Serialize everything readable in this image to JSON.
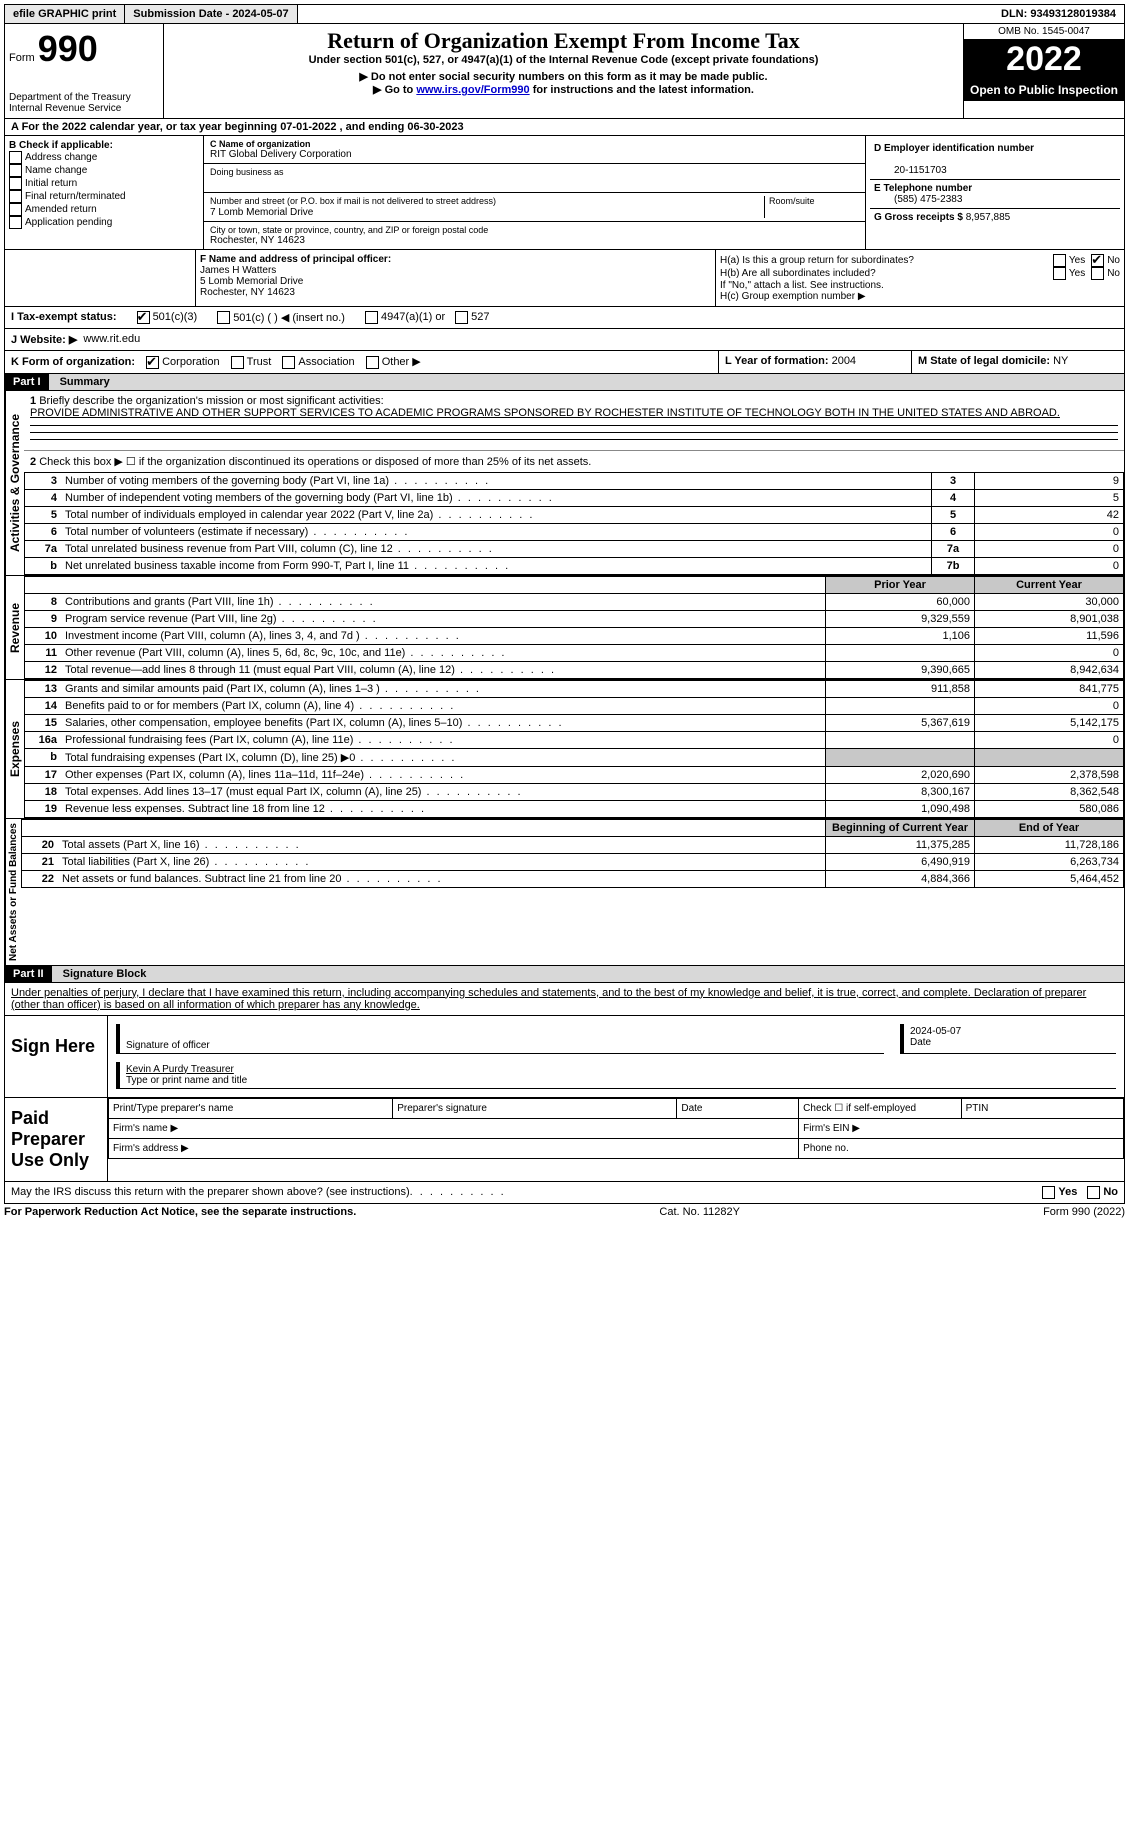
{
  "topbar": {
    "efile": "efile GRAPHIC print",
    "submission": "Submission Date - 2024-05-07",
    "dln": "DLN: 93493128019384"
  },
  "header": {
    "form_label": "Form",
    "form_number": "990",
    "dept": "Department of the Treasury",
    "irs": "Internal Revenue Service",
    "title": "Return of Organization Exempt From Income Tax",
    "subtitle": "Under section 501(c), 527, or 4947(a)(1) of the Internal Revenue Code (except private foundations)",
    "note1": "▶ Do not enter social security numbers on this form as it may be made public.",
    "note2_pre": "▶ Go to ",
    "note2_link": "www.irs.gov/Form990",
    "note2_post": " for instructions and the latest information.",
    "omb": "OMB No. 1545-0047",
    "year": "2022",
    "open": "Open to Public Inspection"
  },
  "lineA": "A For the 2022 calendar year, or tax year beginning 07-01-2022   , and ending 06-30-2023",
  "secB": {
    "label": "B Check if applicable:",
    "opts": [
      "Address change",
      "Name change",
      "Initial return",
      "Final return/terminated",
      "Amended return",
      "Application pending"
    ]
  },
  "secC": {
    "name_label": "C Name of organization",
    "name": "RIT Global Delivery Corporation",
    "dba_label": "Doing business as",
    "street_label": "Number and street (or P.O. box if mail is not delivered to street address)",
    "room_label": "Room/suite",
    "street": "7 Lomb Memorial Drive",
    "city_label": "City or town, state or province, country, and ZIP or foreign postal code",
    "city": "Rochester, NY  14623"
  },
  "secD": {
    "label": "D Employer identification number",
    "ein": "20-1151703",
    "tel_label": "E Telephone number",
    "tel": "(585) 475-2383",
    "gross_label": "G Gross receipts $",
    "gross": "8,957,885"
  },
  "secF": {
    "label": "F Name and address of principal officer:",
    "name": "James H Watters",
    "addr1": "5 Lomb Memorial Drive",
    "addr2": "Rochester, NY  14623"
  },
  "secH": {
    "ha": "H(a)  Is this a group return for subordinates?",
    "hb": "H(b)  Are all subordinates included?",
    "hb_note": "If \"No,\" attach a list. See instructions.",
    "hc": "H(c)  Group exemption number ▶",
    "yes": "Yes",
    "no": "No"
  },
  "secI": {
    "label": "I   Tax-exempt status:",
    "opt1": "501(c)(3)",
    "opt2": "501(c) (  ) ◀ (insert no.)",
    "opt3": "4947(a)(1) or",
    "opt4": "527"
  },
  "secJ": {
    "label": "J   Website: ▶",
    "site": "www.rit.edu"
  },
  "secK": {
    "label": "K Form of organization:",
    "opts": [
      "Corporation",
      "Trust",
      "Association",
      "Other ▶"
    ]
  },
  "secL": {
    "label": "L Year of formation:",
    "val": "2004"
  },
  "secM": {
    "label": "M State of legal domicile:",
    "val": "NY"
  },
  "part1": {
    "header": "Part I",
    "title": "Summary",
    "q1_label": "Briefly describe the organization's mission or most significant activities:",
    "q1_text": "PROVIDE ADMINISTRATIVE AND OTHER SUPPORT SERVICES TO ACADEMIC PROGRAMS SPONSORED BY ROCHESTER INSTITUTE OF TECHNOLOGY BOTH IN THE UNITED STATES AND ABROAD.",
    "q2": "Check this box ▶ ☐ if the organization discontinued its operations or disposed of more than 25% of its net assets.",
    "vlabel_act": "Activities & Governance",
    "vlabel_rev": "Revenue",
    "vlabel_exp": "Expenses",
    "vlabel_net": "Net Assets or Fund Balances",
    "col_prior": "Prior Year",
    "col_current": "Current Year",
    "col_boy": "Beginning of Current Year",
    "col_eoy": "End of Year",
    "rows_gov": [
      {
        "n": "3",
        "label": "Number of voting members of the governing body (Part VI, line 1a)",
        "box": "3",
        "val": "9"
      },
      {
        "n": "4",
        "label": "Number of independent voting members of the governing body (Part VI, line 1b)",
        "box": "4",
        "val": "5"
      },
      {
        "n": "5",
        "label": "Total number of individuals employed in calendar year 2022 (Part V, line 2a)",
        "box": "5",
        "val": "42"
      },
      {
        "n": "6",
        "label": "Total number of volunteers (estimate if necessary)",
        "box": "6",
        "val": "0"
      },
      {
        "n": "7a",
        "label": "Total unrelated business revenue from Part VIII, column (C), line 12",
        "box": "7a",
        "val": "0"
      },
      {
        "n": "b",
        "label": "Net unrelated business taxable income from Form 990-T, Part I, line 11",
        "box": "7b",
        "val": "0"
      }
    ],
    "rows_rev": [
      {
        "n": "8",
        "label": "Contributions and grants (Part VIII, line 1h)",
        "prior": "60,000",
        "cur": "30,000"
      },
      {
        "n": "9",
        "label": "Program service revenue (Part VIII, line 2g)",
        "prior": "9,329,559",
        "cur": "8,901,038"
      },
      {
        "n": "10",
        "label": "Investment income (Part VIII, column (A), lines 3, 4, and 7d )",
        "prior": "1,106",
        "cur": "11,596"
      },
      {
        "n": "11",
        "label": "Other revenue (Part VIII, column (A), lines 5, 6d, 8c, 9c, 10c, and 11e)",
        "prior": "",
        "cur": "0"
      },
      {
        "n": "12",
        "label": "Total revenue—add lines 8 through 11 (must equal Part VIII, column (A), line 12)",
        "prior": "9,390,665",
        "cur": "8,942,634"
      }
    ],
    "rows_exp": [
      {
        "n": "13",
        "label": "Grants and similar amounts paid (Part IX, column (A), lines 1–3 )",
        "prior": "911,858",
        "cur": "841,775"
      },
      {
        "n": "14",
        "label": "Benefits paid to or for members (Part IX, column (A), line 4)",
        "prior": "",
        "cur": "0"
      },
      {
        "n": "15",
        "label": "Salaries, other compensation, employee benefits (Part IX, column (A), lines 5–10)",
        "prior": "5,367,619",
        "cur": "5,142,175"
      },
      {
        "n": "16a",
        "label": "Professional fundraising fees (Part IX, column (A), line 11e)",
        "prior": "",
        "cur": "0"
      },
      {
        "n": "b",
        "label": "Total fundraising expenses (Part IX, column (D), line 25) ▶0",
        "prior": "GRAY",
        "cur": "GRAY"
      },
      {
        "n": "17",
        "label": "Other expenses (Part IX, column (A), lines 11a–11d, 11f–24e)",
        "prior": "2,020,690",
        "cur": "2,378,598"
      },
      {
        "n": "18",
        "label": "Total expenses. Add lines 13–17 (must equal Part IX, column (A), line 25)",
        "prior": "8,300,167",
        "cur": "8,362,548"
      },
      {
        "n": "19",
        "label": "Revenue less expenses. Subtract line 18 from line 12",
        "prior": "1,090,498",
        "cur": "580,086"
      }
    ],
    "rows_net": [
      {
        "n": "20",
        "label": "Total assets (Part X, line 16)",
        "prior": "11,375,285",
        "cur": "11,728,186"
      },
      {
        "n": "21",
        "label": "Total liabilities (Part X, line 26)",
        "prior": "6,490,919",
        "cur": "6,263,734"
      },
      {
        "n": "22",
        "label": "Net assets or fund balances. Subtract line 21 from line 20",
        "prior": "4,884,366",
        "cur": "5,464,452"
      }
    ]
  },
  "part2": {
    "header": "Part II",
    "title": "Signature Block",
    "decl": "Under penalties of perjury, I declare that I have examined this return, including accompanying schedules and statements, and to the best of my knowledge and belief, it is true, correct, and complete. Declaration of preparer (other than officer) is based on all information of which preparer has any knowledge.",
    "sign_here": "Sign Here",
    "sig_of_officer": "Signature of officer",
    "sig_date": "2024-05-07",
    "date_label": "Date",
    "officer_name": "Kevin A Purdy  Treasurer",
    "type_label": "Type or print name and title",
    "paid": "Paid Preparer Use Only",
    "pp_name": "Print/Type preparer's name",
    "pp_sig": "Preparer's signature",
    "pp_date": "Date",
    "pp_check": "Check ☐ if self-employed",
    "pp_ptin": "PTIN",
    "firm_name": "Firm's name   ▶",
    "firm_ein": "Firm's EIN ▶",
    "firm_addr": "Firm's address ▶",
    "phone": "Phone no.",
    "may_irs": "May the IRS discuss this return with the preparer shown above? (see instructions)"
  },
  "footer": {
    "left": "For Paperwork Reduction Act Notice, see the separate instructions.",
    "mid": "Cat. No. 11282Y",
    "right": "Form 990 (2022)"
  }
}
